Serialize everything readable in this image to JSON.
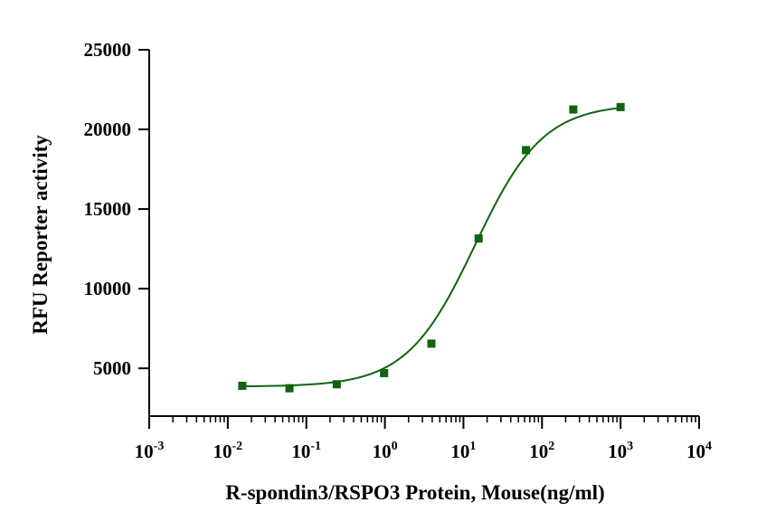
{
  "chart_data": {
    "type": "scatter",
    "title": "",
    "xlabel": "R-spondin3/RSPO3 Protein, Mouse(ng/ml)",
    "ylabel": "RFU Reporter activity",
    "x_scale": "log",
    "xlim": [
      0.001,
      10000
    ],
    "ylim": [
      2000,
      25000
    ],
    "x_ticks": [
      {
        "base": "10",
        "exp": "-3"
      },
      {
        "base": "10",
        "exp": "-2"
      },
      {
        "base": "10",
        "exp": "-1"
      },
      {
        "base": "10",
        "exp": "0"
      },
      {
        "base": "10",
        "exp": "1"
      },
      {
        "base": "10",
        "exp": "2"
      },
      {
        "base": "10",
        "exp": "3"
      },
      {
        "base": "10",
        "exp": "4"
      }
    ],
    "y_ticks": [
      "5000",
      "10000",
      "15000",
      "20000",
      "25000"
    ],
    "grid": false,
    "legend": "none",
    "marker": "square",
    "color": "#0e6410",
    "series": [
      {
        "x": [
          0.0153,
          0.061,
          0.244,
          0.977,
          3.91,
          15.6,
          62.5,
          250,
          1000
        ],
        "y": [
          3900,
          3750,
          4000,
          4700,
          6550,
          13150,
          18700,
          21250,
          21400
        ]
      }
    ],
    "fit": {
      "model": "4PL",
      "bottom": 3850,
      "top": 21600,
      "ec50": 14,
      "hill": 1.0
    }
  }
}
